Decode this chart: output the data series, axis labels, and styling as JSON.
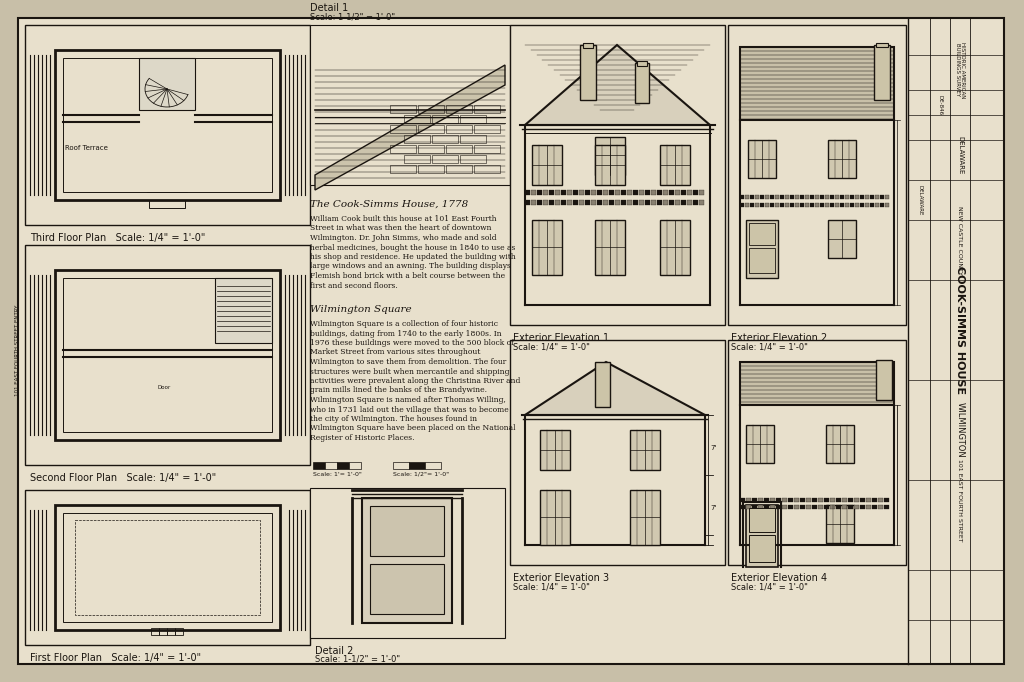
{
  "bg_color": "#c8bfa8",
  "paper_color": "#e8e0cc",
  "line_color": "#1a1510",
  "title": "COOK-SIMMS HOUSE",
  "subtitle": "WILMINGTON",
  "county": "NEW CASTLE COUNTY",
  "state": "DELAWARE",
  "address": "101 EAST FOURTH STREET",
  "labels": {
    "third_floor": "Third Floor Plan   Scale: 1/4\" = 1'-0\"",
    "second_floor": "Second Floor Plan   Scale: 1/4\" = 1'-0\"",
    "first_floor": "First Floor Plan   Scale: 1/4\" = 1'-0\"",
    "detail1_title": "Detail 1",
    "detail1_scale": "Scale: 1-1/2\" = 1'-0\"",
    "detail2_title": "Detail 2",
    "detail2_scale": "Scale: 1-1/2\" = 1'-0\"",
    "elev1_title": "Exterior Elevation 1",
    "elev1_scale": "Scale: 1/4\" = 1'-0\"",
    "elev2_title": "Exterior Elevation 2",
    "elev2_scale": "Scale: 1/4\" = 1'-0\"",
    "elev3_title": "Exterior Elevation 3",
    "elev3_scale": "Scale: 1/4\" = 1'-0\"",
    "elev4_title": "Exterior Elevation 4",
    "elev4_scale": "Scale: 1/4\" = 1'-0\""
  },
  "text_cook_simms": "The Cook-Simms House, 1778",
  "text_wilmington_sq": "Wilmington Square",
  "desc1": [
    "William Cook built this house at 101 East Fourth",
    "Street in what was then the heart of downtown",
    "Wilmington. Dr. John Simms, who made and sold",
    "herbal medicines, bought the house in 1840 to use as",
    "his shop and residence. He updated the building with",
    "large windows and an awning. The building displays",
    "Flemish bond brick with a belt course between the",
    "first and second floors."
  ],
  "desc2": [
    "Wilmington Square is a collection of four historic",
    "buildings, dating from 1740 to the early 1800s. In",
    "1976 these buildings were moved to the 500 block of",
    "Market Street from various sites throughout",
    "Wilmington to save them from demolition. The four",
    "structures were built when mercantile and shipping",
    "activities were prevalent along the Christina River and",
    "grain mills lined the banks of the Brandywine.",
    "Wilmington Square is named after Thomas Willing,",
    "who in 1731 laid out the village that was to become",
    "the city of Wilmington. The houses found in",
    "Wilmington Square have been placed on the National",
    "Register of Historic Places."
  ]
}
